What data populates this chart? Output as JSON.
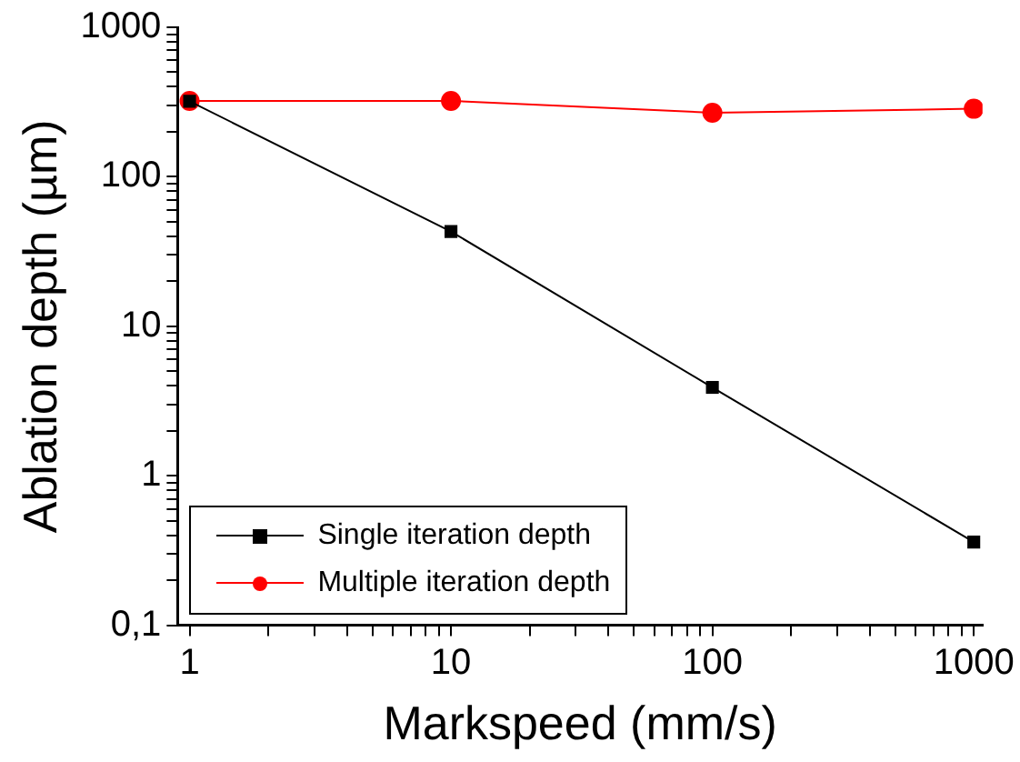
{
  "chart_data": {
    "type": "line",
    "xlabel": "Markspeed (mm/s)",
    "ylabel": "Ablation depth (µm)",
    "x": [
      1,
      10,
      100,
      1000
    ],
    "series": [
      {
        "name": "Single iteration depth",
        "color": "#000000",
        "marker": "square",
        "values": [
          320,
          43,
          3.9,
          0.36
        ]
      },
      {
        "name": "Multiple iteration depth",
        "color": "#ff0000",
        "marker": "circle",
        "values": [
          322,
          322,
          268,
          285
        ]
      }
    ],
    "log": "xy",
    "xlim": [
      0.9,
      1080
    ],
    "ylim": [
      0.1,
      1000
    ],
    "xticks": [
      1,
      {
        "value": 2,
        "label": null
      },
      {
        "value": 3,
        "label": null
      },
      {
        "value": 4,
        "label": null
      },
      {
        "value": 5,
        "label": null
      },
      {
        "value": 6,
        "label": null
      },
      {
        "value": 7,
        "label": null
      },
      {
        "value": 8,
        "label": null
      },
      {
        "value": 9,
        "label": null
      },
      10,
      {
        "value": 20,
        "label": null
      },
      {
        "value": 30,
        "label": null
      },
      {
        "value": 40,
        "label": null
      },
      {
        "value": 50,
        "label": null
      },
      {
        "value": 60,
        "label": null
      },
      {
        "value": 70,
        "label": null
      },
      {
        "value": 80,
        "label": null
      },
      {
        "value": 90,
        "label": null
      },
      100,
      {
        "value": 200,
        "label": null
      },
      {
        "value": 300,
        "label": null
      },
      {
        "value": 400,
        "label": null
      },
      {
        "value": 500,
        "label": null
      },
      {
        "value": 600,
        "label": null
      },
      {
        "value": 700,
        "label": null
      },
      {
        "value": 800,
        "label": null
      },
      {
        "value": 900,
        "label": null
      },
      1000
    ],
    "yticks": [
      {
        "value": 0.1,
        "label": "0,1"
      },
      {
        "value": 0.2,
        "label": null
      },
      {
        "value": 0.3,
        "label": null
      },
      {
        "value": 0.4,
        "label": null
      },
      {
        "value": 0.5,
        "label": null
      },
      {
        "value": 0.6,
        "label": null
      },
      {
        "value": 0.7,
        "label": null
      },
      {
        "value": 0.8,
        "label": null
      },
      {
        "value": 0.9,
        "label": null
      },
      1,
      {
        "value": 2,
        "label": null
      },
      {
        "value": 3,
        "label": null
      },
      {
        "value": 4,
        "label": null
      },
      {
        "value": 5,
        "label": null
      },
      {
        "value": 6,
        "label": null
      },
      {
        "value": 7,
        "label": null
      },
      {
        "value": 8,
        "label": null
      },
      {
        "value": 9,
        "label": null
      },
      10,
      {
        "value": 20,
        "label": null
      },
      {
        "value": 30,
        "label": null
      },
      {
        "value": 40,
        "label": null
      },
      {
        "value": 50,
        "label": null
      },
      {
        "value": 60,
        "label": null
      },
      {
        "value": 70,
        "label": null
      },
      {
        "value": 80,
        "label": null
      },
      {
        "value": 90,
        "label": null
      },
      100,
      {
        "value": 200,
        "label": null
      },
      {
        "value": 300,
        "label": null
      },
      {
        "value": 400,
        "label": null
      },
      {
        "value": 500,
        "label": null
      },
      {
        "value": 600,
        "label": null
      },
      {
        "value": 700,
        "label": null
      },
      {
        "value": 800,
        "label": null
      },
      {
        "value": 900,
        "label": null
      },
      1000
    ],
    "grid": false,
    "legend": "bottom left",
    "line_style": "solid"
  }
}
